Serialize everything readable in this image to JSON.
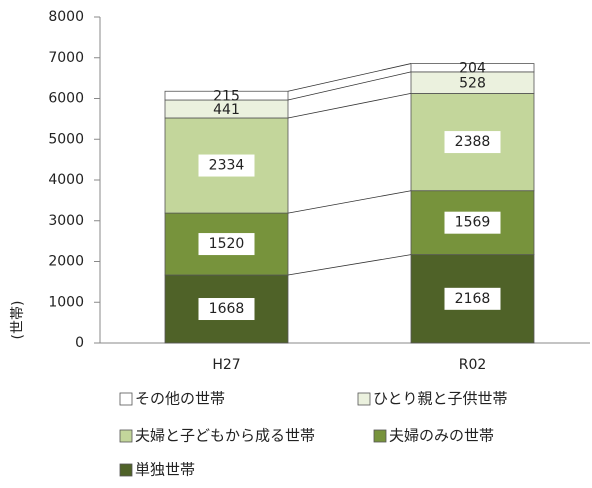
{
  "chart_data": {
    "type": "stacked_bar",
    "y_label": "(世帯)",
    "categories": [
      "H27",
      "R02"
    ],
    "series": [
      {
        "name": "単独世帯",
        "color": "#4f6228",
        "values": [
          1668,
          2168
        ]
      },
      {
        "name": "夫婦のみの世帯",
        "color": "#77933c",
        "values": [
          1520,
          1569
        ]
      },
      {
        "name": "夫婦と子どもから成る世帯",
        "color": "#c3d69b",
        "values": [
          2334,
          2388
        ]
      },
      {
        "name": "ひとり親と子供世帯",
        "color": "#ebf1de",
        "values": [
          441,
          528
        ]
      },
      {
        "name": "その他の世帯",
        "color": "#ffffff",
        "values": [
          215,
          204
        ]
      }
    ],
    "ylim": [
      0,
      8000
    ],
    "yticks": [
      0,
      1000,
      2000,
      3000,
      4000,
      5000,
      6000,
      7000,
      8000
    ]
  }
}
